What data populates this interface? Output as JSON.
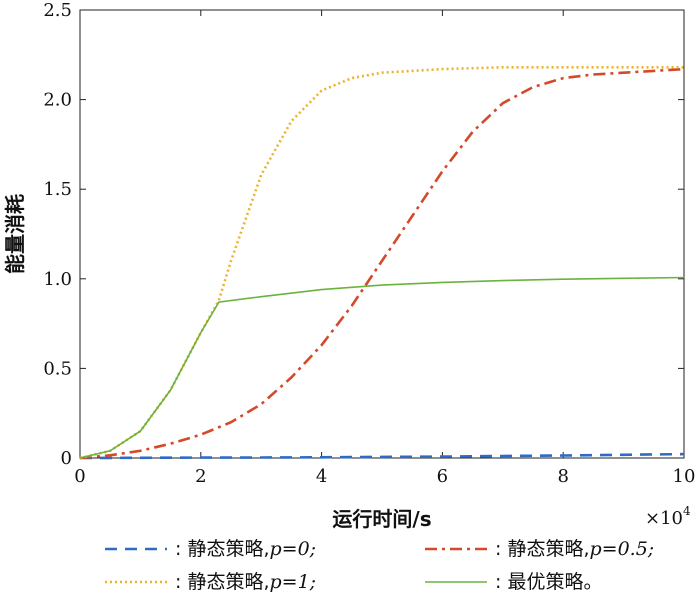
{
  "chart_data": {
    "type": "line",
    "title": "",
    "xlabel": "运行时间/s",
    "ylabel": "能量消耗",
    "x_multiplier": "×10",
    "x_multiplier_exp": "4",
    "xlim": [
      0,
      10
    ],
    "ylim": [
      0,
      2.5
    ],
    "xticks": [
      0,
      2,
      4,
      6,
      8,
      10
    ],
    "xtick_labels": [
      "0",
      "2",
      "4",
      "6",
      "8",
      "10"
    ],
    "yticks": [
      0,
      0.5,
      1.0,
      1.5,
      2.0,
      2.5
    ],
    "ytick_labels": [
      "0",
      "0.5",
      "1.0",
      "1.5",
      "2.0",
      "2.5"
    ],
    "grid": false,
    "legend_position": "bottom",
    "series": [
      {
        "name": "静态策略,",
        "param_label": "p",
        "param_value": "=0;",
        "color": "#2e6bc4",
        "style": "dashed",
        "x": [
          0,
          1,
          2,
          3,
          4,
          5,
          6,
          7,
          8,
          9,
          10
        ],
        "y": [
          0,
          0.001,
          0.002,
          0.003,
          0.004,
          0.006,
          0.008,
          0.011,
          0.014,
          0.018,
          0.022
        ]
      },
      {
        "name": "静态策略,",
        "param_label": "p",
        "param_value": "=0.5;",
        "color": "#d4492a",
        "style": "dashdot",
        "x": [
          0,
          0.5,
          1,
          1.5,
          2,
          2.5,
          3,
          3.5,
          4,
          4.5,
          5,
          5.5,
          6,
          6.5,
          7,
          7.5,
          8,
          8.5,
          9,
          9.5,
          10
        ],
        "y": [
          0,
          0.015,
          0.04,
          0.08,
          0.13,
          0.2,
          0.3,
          0.45,
          0.63,
          0.85,
          1.1,
          1.35,
          1.6,
          1.82,
          1.98,
          2.07,
          2.12,
          2.14,
          2.15,
          2.16,
          2.17
        ]
      },
      {
        "name": "静态策略,",
        "param_label": "p",
        "param_value": "=1;",
        "color": "#edb22b",
        "style": "dotted",
        "x": [
          0,
          0.5,
          1,
          1.5,
          2,
          2.3,
          2.5,
          3,
          3.5,
          4,
          4.5,
          5,
          5.5,
          6,
          7,
          8,
          9,
          10
        ],
        "y": [
          0,
          0.04,
          0.15,
          0.38,
          0.7,
          0.88,
          1.1,
          1.58,
          1.88,
          2.05,
          2.12,
          2.15,
          2.16,
          2.17,
          2.18,
          2.18,
          2.18,
          2.18
        ]
      },
      {
        "name": "最优策略。",
        "param_label": "",
        "param_value": "",
        "color": "#6ab33e",
        "style": "solid",
        "x": [
          0,
          0.5,
          1,
          1.5,
          2,
          2.3,
          3,
          4,
          5,
          6,
          7,
          8,
          9,
          10
        ],
        "y": [
          0,
          0.04,
          0.15,
          0.38,
          0.7,
          0.87,
          0.9,
          0.94,
          0.965,
          0.98,
          0.99,
          0.998,
          1.003,
          1.007
        ]
      }
    ]
  }
}
